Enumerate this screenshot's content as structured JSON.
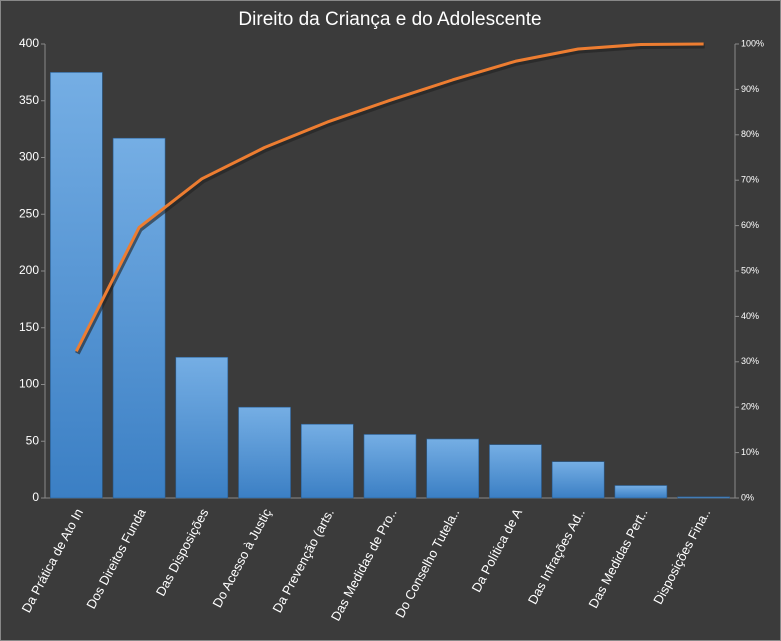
{
  "chart_data": {
    "type": "pareto",
    "title": "Direito da Criança e do Adolescente",
    "categories": [
      "Da Prática de Ato In",
      "Dos Direitos Funda",
      "Das Disposições",
      "Do Acesso à Justiç",
      "Da Prevenção (arts.",
      "Das Medidas de Pro..",
      "Do Conselho Tutela..",
      "Da Política de A",
      "Das Infrações Ad..",
      "Das Medidas Pert..",
      "Disposições Fina.."
    ],
    "series": [
      {
        "type": "bar",
        "color": "#4a90d9",
        "values": [
          375,
          317,
          124,
          80,
          65,
          56,
          52,
          47,
          32,
          11,
          1
        ]
      },
      {
        "type": "line",
        "color": "#ed7d31",
        "axis": "y2",
        "values": [
          32.3,
          59.6,
          70.3,
          77.2,
          82.8,
          87.6,
          92.1,
          96.2,
          98.9,
          99.9,
          100
        ]
      }
    ],
    "ylim": [
      0,
      400
    ],
    "yticks": [
      0,
      50,
      100,
      150,
      200,
      250,
      300,
      350,
      400
    ],
    "y2lim": [
      0,
      100
    ],
    "y2ticks": [
      {
        "value": 0,
        "label": "0%"
      },
      {
        "value": 10,
        "label": "10%"
      },
      {
        "value": 20,
        "label": "20%"
      },
      {
        "value": 30,
        "label": "30%"
      },
      {
        "value": 40,
        "label": "40%"
      },
      {
        "value": 50,
        "label": "50%"
      },
      {
        "value": 60,
        "label": "60%"
      },
      {
        "value": 70,
        "label": "70%"
      },
      {
        "value": 80,
        "label": "80%"
      },
      {
        "value": 90,
        "label": "90%"
      },
      {
        "value": 100,
        "label": "100%"
      }
    ]
  }
}
